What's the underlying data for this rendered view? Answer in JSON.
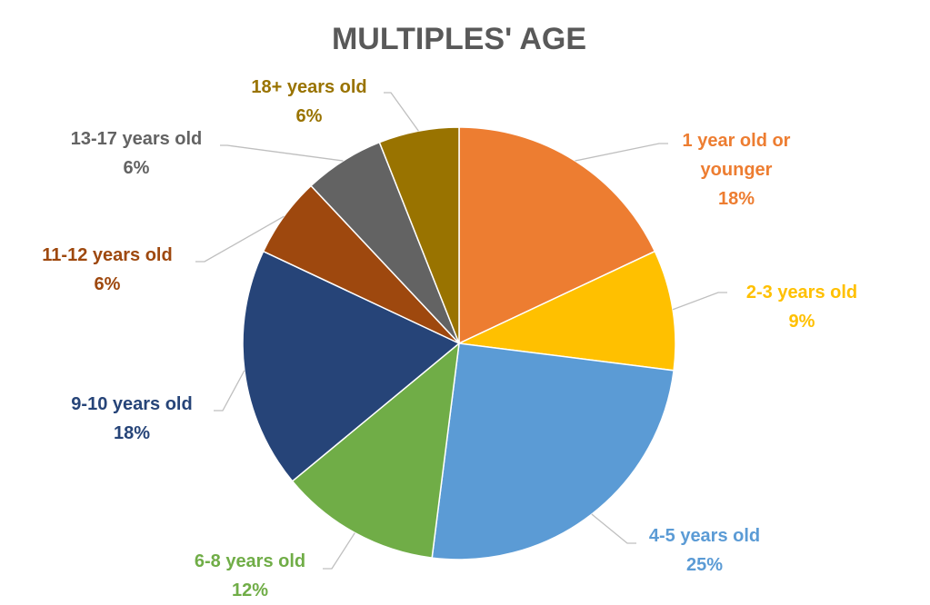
{
  "chart_data": {
    "type": "pie",
    "title": "MULTIPLES' AGE",
    "categories": [
      "1 year old or younger",
      "2-3 years old",
      "4-5 years old",
      "6-8 years old",
      "9-10 years old",
      "11-12 years old",
      "13-17 years old",
      "18+ years old"
    ],
    "values": [
      18,
      9,
      25,
      12,
      18,
      6,
      6,
      6
    ],
    "value_labels": [
      "18%",
      "9%",
      "25%",
      "12%",
      "18%",
      "6%",
      "6%",
      "6%"
    ],
    "colors": [
      "#ED7D31",
      "#FFC000",
      "#5B9BD5",
      "#70AD47",
      "#264478",
      "#9E480E",
      "#636363",
      "#997300"
    ]
  }
}
